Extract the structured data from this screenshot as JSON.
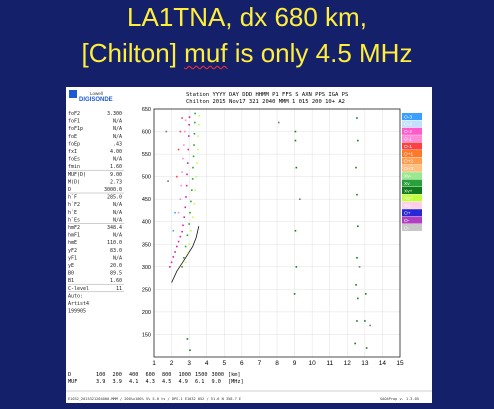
{
  "slide": {
    "title_pre": "LA1TNA, dx 680 km,",
    "title2_pre": "[Chilton] ",
    "title2_muf": "muf",
    "title2_post": " is only 4.5 MHz"
  },
  "header": {
    "brand_top": "Lowell",
    "brand": "DIGISONDE",
    "line1": "Station YYYY DAY   DDD HHMM P1  FFS S AXN PPS IGA PS",
    "line2": "Chilton 2015 Nov17 321 2040 MMM     1 015 200 10+ A2"
  },
  "params": [
    {
      "k": "foF2",
      "v": "3.300"
    },
    {
      "k": "foF1",
      "v": "N/A"
    },
    {
      "k": "foF1p",
      "v": "N/A"
    },
    {
      "k": "foE",
      "v": "N/A"
    },
    {
      "k": "foEp",
      "v": ".43"
    },
    {
      "k": "fxI",
      "v": "4.00"
    },
    {
      "k": "foEs",
      "v": "N/A"
    },
    {
      "k": "fmin",
      "v": "1.60"
    },
    {
      "k": "MUF(D)",
      "v": "9.00"
    },
    {
      "k": "M(D)",
      "v": "2.73"
    },
    {
      "k": "D",
      "v": "3000.0"
    },
    {
      "k": "h`F",
      "v": "285.0"
    },
    {
      "k": "h`F2",
      "v": "N/A"
    },
    {
      "k": "h`E",
      "v": "N/A"
    },
    {
      "k": "h`Es",
      "v": "N/A"
    },
    {
      "k": "hmF2",
      "v": "348.4"
    },
    {
      "k": "hmF1",
      "v": "N/A"
    },
    {
      "k": "hmE",
      "v": "110.0"
    },
    {
      "k": "yF2",
      "v": "83.0"
    },
    {
      "k": "yF1",
      "v": "N/A"
    },
    {
      "k": "yE",
      "v": "20.0"
    },
    {
      "k": "B0",
      "v": "89.5"
    },
    {
      "k": "B1",
      "v": "1.60"
    },
    {
      "k": "C-level",
      "v": "11"
    },
    {
      "k": "Auto:",
      "v": ""
    },
    {
      "k": "Artist4",
      "v": ""
    },
    {
      "k": "199905",
      "v": ""
    }
  ],
  "legend": [
    {
      "label": "O-3",
      "color": "#3aa0ff"
    },
    {
      "label": "O-2",
      "color": "#c0e0ff"
    },
    {
      "label": "O-2",
      "color": "#ff5ac8"
    },
    {
      "label": "O-1",
      "color": "#ff8ad8"
    },
    {
      "label": "O-1",
      "color": "#ff4040"
    },
    {
      "label": "O+1",
      "color": "#ff7a28"
    },
    {
      "label": "O+2",
      "color": "#ff9c50"
    },
    {
      "label": "O+3",
      "color": "#ffc080"
    },
    {
      "label": "Xv-",
      "color": "#9be890"
    },
    {
      "label": "Xv",
      "color": "#2aa03a"
    },
    {
      "label": "Xv+",
      "color": "#117a1c"
    },
    {
      "label": "Xq+",
      "color": "#c0ff40"
    },
    {
      "label": "Xq-",
      "color": "#ffd0e8"
    },
    {
      "label": "O+",
      "color": "#2828d8"
    },
    {
      "label": "O-",
      "color": "#b040c0"
    },
    {
      "label": "O-",
      "color": "#c8c8c8"
    }
  ],
  "chart_data": {
    "type": "scatter",
    "xlim": [
      1,
      15
    ],
    "ylim": [
      100,
      650
    ],
    "x_ticks": [
      1,
      2,
      3,
      4,
      5,
      6,
      7,
      8,
      9,
      10,
      11,
      12,
      13,
      14,
      15
    ],
    "y_ticks": [
      150,
      200,
      250,
      300,
      350,
      400,
      450,
      500,
      550,
      600,
      650
    ],
    "x_unit": "[MHz]",
    "muf_table": {
      "D_label": "D",
      "D": [
        "100",
        "200",
        "400",
        "600",
        "800",
        "1000",
        "1500",
        "3000"
      ],
      "D_unit": "[km]",
      "MUF_label": "MUF",
      "MUF": [
        "3.9",
        "3.9",
        "4.1",
        "4.3",
        "4.5",
        "4.9",
        "6.1",
        "9.0"
      ],
      "MUF_unit": "[MHz]"
    },
    "footer": "E1032_2015321204000.MMM / 200%x100% 5% 5.0 ts / DPS-1 E1032 052 / 51.6 N 358.7 E",
    "footer_right": "SAO4Prop v. 1.3.05",
    "series": [
      {
        "color": "#d61fa0",
        "points": [
          [
            1.9,
            300
          ],
          [
            2.0,
            310
          ],
          [
            2.1,
            322
          ],
          [
            2.2,
            333
          ],
          [
            2.3,
            345
          ],
          [
            2.4,
            356
          ],
          [
            2.5,
            367
          ],
          [
            2.6,
            378
          ],
          [
            2.65,
            392
          ],
          [
            2.72,
            410
          ],
          [
            2.78,
            432
          ],
          [
            2.82,
            455
          ],
          [
            2.86,
            480
          ],
          [
            2.88,
            505
          ],
          [
            2.92,
            530
          ],
          [
            2.95,
            560
          ],
          [
            2.98,
            590
          ],
          [
            3.0,
            615
          ],
          [
            3.02,
            632
          ]
        ]
      },
      {
        "color": "#2aa03a",
        "points": [
          [
            2.6,
            300
          ],
          [
            2.7,
            320
          ],
          [
            2.8,
            345
          ],
          [
            2.9,
            370
          ],
          [
            3.0,
            395
          ],
          [
            3.05,
            420
          ],
          [
            3.1,
            445
          ],
          [
            3.15,
            470
          ],
          [
            3.2,
            495
          ],
          [
            3.22,
            520
          ],
          [
            3.25,
            545
          ],
          [
            3.28,
            570
          ],
          [
            3.3,
            595
          ],
          [
            3.32,
            620
          ],
          [
            3.34,
            640
          ]
        ]
      },
      {
        "color": "#c0ff40",
        "points": [
          [
            2.8,
            310
          ],
          [
            2.9,
            330
          ],
          [
            3.0,
            350
          ],
          [
            3.1,
            380
          ],
          [
            3.2,
            410
          ],
          [
            3.3,
            440
          ],
          [
            3.35,
            470
          ],
          [
            3.4,
            500
          ],
          [
            3.45,
            530
          ],
          [
            3.5,
            560
          ],
          [
            3.52,
            590
          ],
          [
            3.55,
            615
          ],
          [
            3.58,
            635
          ]
        ]
      },
      {
        "color": "#ff8ad8",
        "points": [
          [
            2.4,
            420
          ],
          [
            2.5,
            450
          ],
          [
            2.55,
            480
          ],
          [
            2.6,
            510
          ],
          [
            2.65,
            540
          ],
          [
            2.7,
            570
          ],
          [
            2.75,
            600
          ],
          [
            2.8,
            625
          ]
        ]
      },
      {
        "color": "#ff4040",
        "points": [
          [
            2.3,
            500
          ],
          [
            2.4,
            560
          ],
          [
            2.5,
            600
          ],
          [
            2.6,
            630
          ]
        ]
      },
      {
        "color": "#3aa0ff",
        "points": [
          [
            2.1,
            380
          ],
          [
            2.2,
            420
          ]
        ]
      },
      {
        "color": "#117a1c",
        "points": [
          [
            9.05,
            600
          ],
          [
            9.05,
            580
          ],
          [
            9.1,
            520
          ],
          [
            9.05,
            380
          ],
          [
            9.1,
            300
          ],
          [
            9.0,
            240
          ],
          [
            12.55,
            630
          ],
          [
            12.6,
            580
          ],
          [
            12.5,
            520
          ],
          [
            12.55,
            460
          ],
          [
            12.6,
            390
          ],
          [
            12.55,
            320
          ],
          [
            12.5,
            260
          ],
          [
            12.6,
            230
          ],
          [
            12.55,
            180
          ],
          [
            12.45,
            130
          ],
          [
            13.05,
            240
          ],
          [
            13.0,
            180
          ],
          [
            13.1,
            120
          ],
          [
            2.9,
            140
          ],
          [
            3.05,
            115
          ]
        ]
      },
      {
        "color": "#777777",
        "points": [
          [
            1.7,
            600
          ],
          [
            1.8,
            490
          ],
          [
            8.1,
            620
          ],
          [
            9.3,
            450
          ],
          [
            12.7,
            300
          ],
          [
            13.3,
            170
          ]
        ]
      }
    ],
    "trace": [
      [
        2.0,
        265
      ],
      [
        2.3,
        290
      ],
      [
        2.8,
        320
      ],
      [
        3.2,
        345
      ],
      [
        3.4,
        365
      ],
      [
        3.55,
        390
      ]
    ]
  }
}
